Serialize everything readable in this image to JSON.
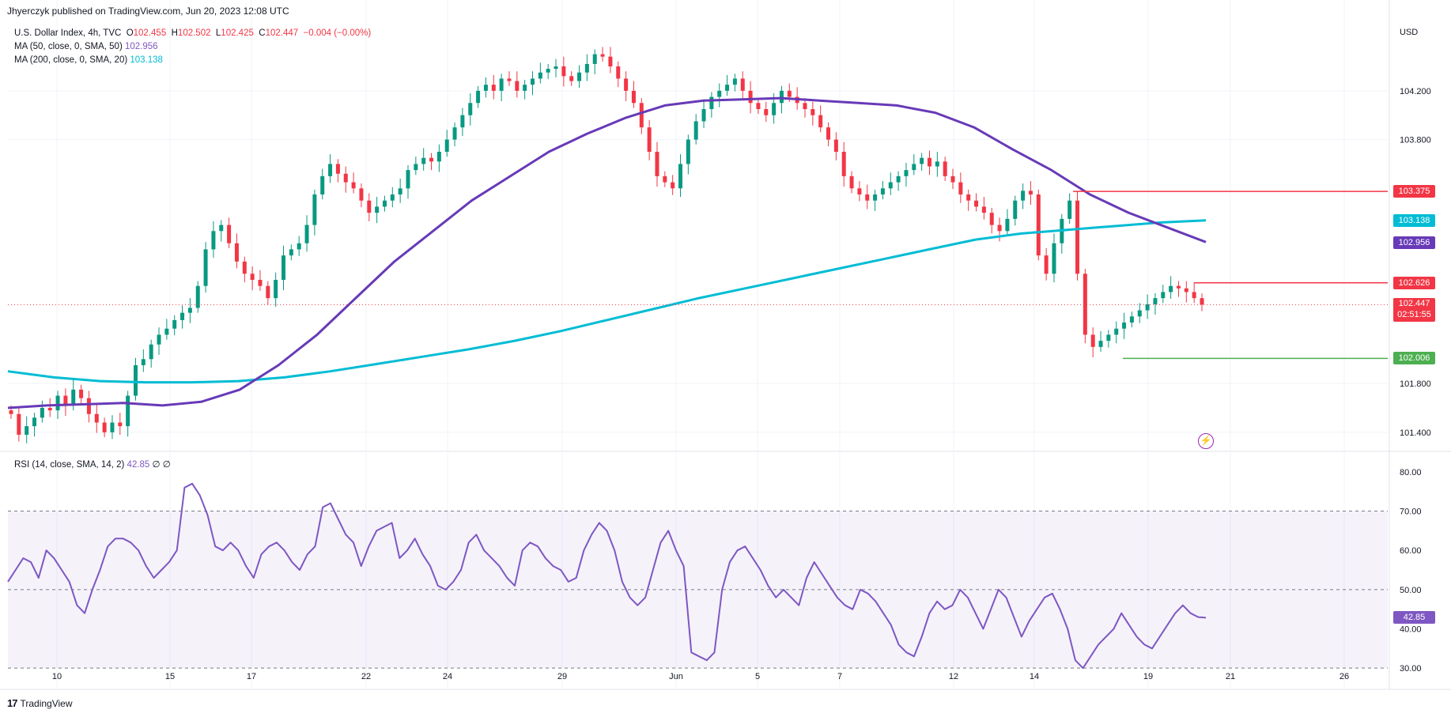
{
  "publisher_line": "Jhyerczyk published on TradingView.com, Jun 20, 2023 12:08 UTC",
  "legend": {
    "symbol": "U.S. Dollar Index, 4h, TVC",
    "o_label": "O",
    "o": "102.455",
    "h_label": "H",
    "h": "102.502",
    "l_label": "L",
    "l": "102.425",
    "c_label": "C",
    "c": "102.447",
    "change": "−0.004 (−0.00%)",
    "ma50_label": "MA (50, close, 0, SMA, 50)",
    "ma50_value": "102.956",
    "ma200_label": "MA (200, close, 0, SMA, 20)",
    "ma200_value": "103.138"
  },
  "rsi_legend": {
    "label": "RSI (14, close, SMA, 14, 2)",
    "value": "42.85",
    "extra1": "∅",
    "extra2": "∅"
  },
  "footer": {
    "logo": "17",
    "brand": "TradingView"
  },
  "colors": {
    "up": "#089981",
    "down": "#f23645",
    "ma50": "#673ab7",
    "ma200": "#00bcd4",
    "rsi": "#7e57c2",
    "support": "#4caf50",
    "resistance": "#f23645"
  },
  "chart_data": [
    {
      "type": "line",
      "title": "U.S. Dollar Index, 4h, TVC",
      "currency_label": "USD",
      "x_ticks": [
        "10",
        "15",
        "17",
        "22",
        "24",
        "29",
        "Jun",
        "5",
        "7",
        "12",
        "14",
        "19",
        "21",
        "26"
      ],
      "y_ticks": [
        "104.200",
        "103.800",
        "101.800",
        "101.400"
      ],
      "badges": [
        {
          "value": "103.375",
          "color": "#f23645"
        },
        {
          "value": "103.138",
          "color": "#00bcd4"
        },
        {
          "value": "102.956",
          "color": "#673ab7"
        },
        {
          "value": "102.626",
          "color": "#f23645"
        },
        {
          "value": "102.447",
          "sub": "02:51:55",
          "color": "#f23645"
        },
        {
          "value": "102.006",
          "color": "#4caf50"
        }
      ],
      "grid": true,
      "y_scale": {
        "axis": "right"
      },
      "series": [
        {
          "name": "U.S. Dollar Index",
          "kind": "candlestick",
          "close": [
            101.55,
            101.38,
            101.45,
            101.52,
            101.6,
            101.58,
            101.7,
            101.62,
            101.75,
            101.68,
            101.55,
            101.48,
            101.4,
            101.48,
            101.45,
            101.7,
            101.95,
            102.0,
            102.12,
            102.2,
            102.25,
            102.32,
            102.38,
            102.42,
            102.6,
            102.9,
            103.05,
            103.1,
            102.95,
            102.8,
            102.7,
            102.65,
            102.6,
            102.5,
            102.65,
            102.85,
            102.9,
            102.95,
            103.1,
            103.35,
            103.5,
            103.6,
            103.52,
            103.45,
            103.4,
            103.3,
            103.2,
            103.25,
            103.3,
            103.35,
            103.4,
            103.55,
            103.6,
            103.65,
            103.62,
            103.7,
            103.8,
            103.9,
            104.0,
            104.1,
            104.2,
            104.25,
            104.2,
            104.3,
            104.28,
            104.2,
            104.25,
            104.3,
            104.35,
            104.38,
            104.4,
            104.32,
            104.28,
            104.35,
            104.42,
            104.5,
            104.48,
            104.4,
            104.3,
            104.2,
            104.1,
            103.9,
            103.7,
            103.5,
            103.45,
            103.4,
            103.6,
            103.8,
            103.95,
            104.05,
            104.15,
            104.2,
            104.25,
            104.3,
            104.2,
            104.1,
            104.05,
            104.0,
            104.1,
            104.2,
            104.15,
            104.1,
            104.05,
            104.0,
            103.9,
            103.8,
            103.7,
            103.5,
            103.4,
            103.35,
            103.3,
            103.35,
            103.4,
            103.45,
            103.5,
            103.55,
            103.6,
            103.65,
            103.58,
            103.62,
            103.5,
            103.45,
            103.35,
            103.3,
            103.25,
            103.2,
            103.1,
            103.05,
            103.15,
            103.3,
            103.38,
            103.35,
            102.85,
            102.7,
            102.95,
            103.15,
            103.3,
            102.7,
            102.2,
            102.1,
            102.15,
            102.2,
            102.25,
            102.3,
            102.35,
            102.4,
            102.45,
            102.5,
            102.55,
            102.6,
            102.58,
            102.55,
            102.5,
            102.447
          ],
          "last": 102.447
        },
        {
          "name": "MA (50, close, 0, SMA, 50)",
          "kind": "line",
          "last": 102.956,
          "values": [
            101.6,
            101.62,
            101.63,
            101.64,
            101.62,
            101.65,
            101.75,
            101.95,
            102.2,
            102.5,
            102.8,
            103.05,
            103.3,
            103.5,
            103.7,
            103.85,
            103.98,
            104.08,
            104.12,
            104.13,
            104.14,
            104.12,
            104.1,
            104.08,
            104.02,
            103.9,
            103.72,
            103.55,
            103.35,
            103.2,
            103.08,
            102.96
          ]
        },
        {
          "name": "MA (200, close, 0, SMA, 20)",
          "kind": "line",
          "last": 103.138,
          "values": [
            101.9,
            101.85,
            101.82,
            101.81,
            101.81,
            101.82,
            101.85,
            101.9,
            101.96,
            102.02,
            102.08,
            102.15,
            102.23,
            102.32,
            102.41,
            102.5,
            102.58,
            102.66,
            102.74,
            102.82,
            102.9,
            102.98,
            103.03,
            103.06,
            103.09,
            103.12,
            103.138
          ]
        }
      ],
      "levels": [
        {
          "value": 103.375,
          "color": "#f23645"
        },
        {
          "value": 102.626,
          "color": "#f23645"
        },
        {
          "value": 102.006,
          "color": "#4caf50"
        }
      ]
    },
    {
      "type": "line",
      "title": "RSI (14, close, SMA, 14, 2)",
      "y_ticks": [
        "80.00",
        "70.00",
        "60.00",
        "50.00",
        "40.00",
        "30.00"
      ],
      "ylim": [
        25,
        83
      ],
      "bands": {
        "upper": 70,
        "middle": 50,
        "lower": 30
      },
      "series": [
        {
          "name": "RSI",
          "last": 42.85,
          "values": [
            52,
            55,
            58,
            57,
            53,
            60,
            58,
            55,
            52,
            46,
            44,
            50,
            55,
            61,
            63,
            63,
            62,
            60,
            56,
            53,
            55,
            57,
            60,
            76,
            77,
            74,
            69,
            61,
            60,
            62,
            60,
            56,
            53,
            59,
            61,
            62,
            60,
            57,
            55,
            59,
            61,
            71,
            72,
            68,
            64,
            62,
            56,
            61,
            65,
            66,
            67,
            58,
            60,
            63,
            59,
            56,
            51,
            50,
            52,
            55,
            62,
            64,
            60,
            58,
            56,
            53,
            51,
            60,
            62,
            61,
            58,
            56,
            55,
            52,
            53,
            60,
            64,
            67,
            65,
            60,
            52,
            48,
            46,
            48,
            55,
            62,
            65,
            60,
            56,
            34,
            33,
            32,
            34,
            50,
            57,
            60,
            61,
            58,
            55,
            51,
            48,
            50,
            48,
            46,
            53,
            57,
            54,
            51,
            48,
            46,
            45,
            50,
            49,
            47,
            44,
            41,
            36,
            34,
            33,
            38,
            44,
            47,
            45,
            46,
            50,
            48,
            44,
            40,
            45,
            50,
            48,
            43,
            38,
            42,
            45,
            48,
            49,
            45,
            40,
            32,
            30,
            33,
            36,
            38,
            40,
            44,
            41,
            38,
            36,
            35,
            38,
            41,
            44,
            46,
            44,
            43,
            42.85
          ]
        }
      ]
    }
  ]
}
